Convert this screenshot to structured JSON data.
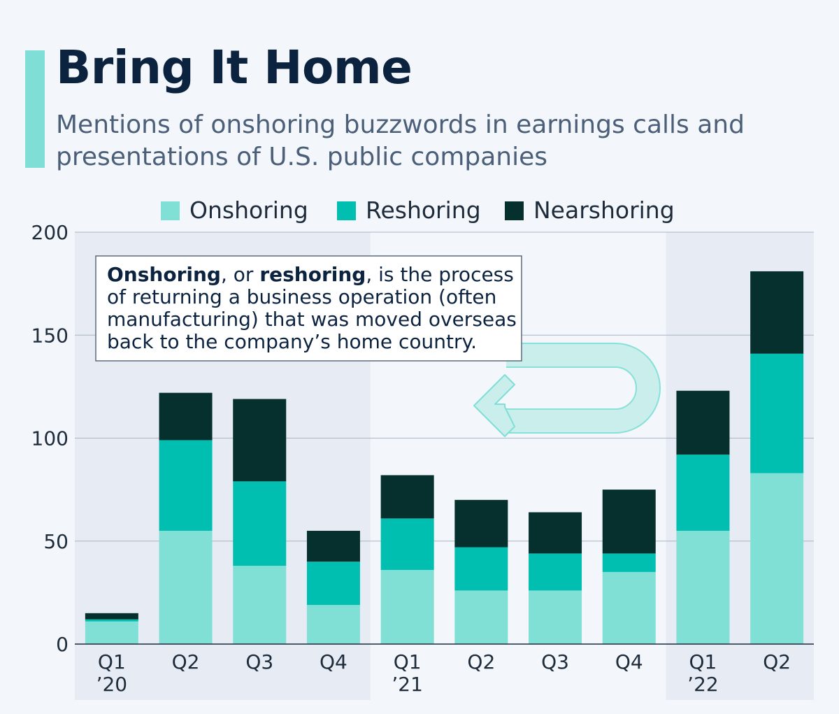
{
  "title": "Bring It Home",
  "subtitle": "Mentions of onshoring buzzwords in earnings calls and presentations of U.S. public companies",
  "colors": {
    "title": "#0c2340",
    "subtitle": "#4b5f78",
    "accent": "#7fdfd6",
    "shade": "#e6ebf4",
    "grid": "#a9b6c4"
  },
  "annotation": {
    "bold1": "Onshoring",
    "text1": ", or ",
    "bold2": "reshoring",
    "text2": ", is the process",
    "lines": [
      "of returning a business operation (often",
      "manufacturing) that was moved overseas",
      "back to the company’s home country."
    ]
  },
  "chart_data": {
    "type": "bar",
    "stacked": true,
    "title": "Bring It Home",
    "categories": [
      "Q1 ’20",
      "Q2",
      "Q3",
      "Q4",
      "Q1 ’21",
      "Q2",
      "Q3",
      "Q4",
      "Q1 ’22",
      "Q2"
    ],
    "category_lines": [
      [
        "Q1",
        "’20"
      ],
      [
        "Q2"
      ],
      [
        "Q3"
      ],
      [
        "Q4"
      ],
      [
        "Q1",
        "’21"
      ],
      [
        "Q2"
      ],
      [
        "Q3"
      ],
      [
        "Q4"
      ],
      [
        "Q1",
        "’22"
      ],
      [
        "Q2"
      ]
    ],
    "series": [
      {
        "name": "Onshoring",
        "color": "#80e0d6",
        "values": [
          11,
          55,
          38,
          19,
          36,
          26,
          26,
          35,
          55,
          83
        ]
      },
      {
        "name": "Reshoring",
        "color": "#00bfb0",
        "values": [
          1,
          44,
          41,
          21,
          25,
          21,
          18,
          9,
          37,
          58
        ]
      },
      {
        "name": "Nearshoring",
        "color": "#06302e",
        "values": [
          3,
          23,
          40,
          15,
          21,
          23,
          20,
          31,
          31,
          40
        ]
      }
    ],
    "y_ticks": [
      0,
      50,
      100,
      150,
      200
    ],
    "ylim": [
      0,
      200
    ],
    "grid": true,
    "legend_position": "top-center",
    "xlabel": "",
    "ylabel": ""
  }
}
